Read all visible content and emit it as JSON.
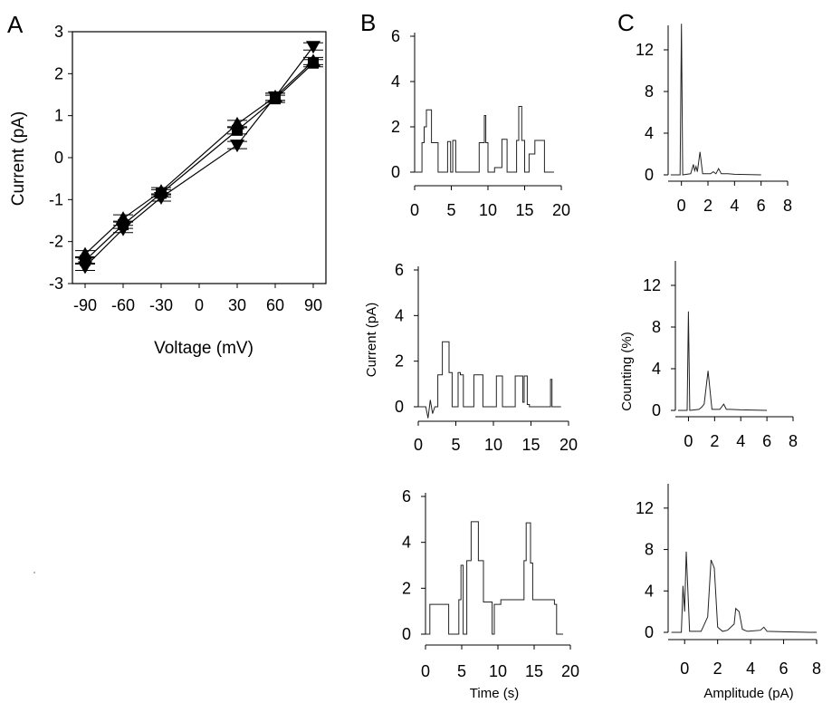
{
  "chart_data": [
    {
      "panel": "A",
      "type": "line",
      "xlabel": "Voltage (mV)",
      "ylabel": "Current (pA)",
      "xticks": [
        -90,
        -60,
        -30,
        0,
        30,
        60,
        90
      ],
      "yticks": [
        -3,
        -2,
        -1,
        0,
        1,
        2,
        3
      ],
      "xlim": [
        -100,
        100
      ],
      "ylim": [
        -3,
        3
      ],
      "grid": false,
      "series": [
        {
          "marker": "triangle-up",
          "x": [
            -90,
            -60,
            -30,
            30,
            60,
            90
          ],
          "y": [
            -2.3,
            -1.45,
            -0.8,
            0.8,
            1.45,
            2.3
          ]
        },
        {
          "marker": "square",
          "x": [
            -90,
            -60,
            -30,
            30,
            60,
            90
          ],
          "y": [
            -2.45,
            -1.6,
            -0.85,
            0.65,
            1.4,
            2.25
          ]
        },
        {
          "marker": "triangle-down",
          "x": [
            -90,
            -60,
            -30,
            30,
            60,
            90
          ],
          "y": [
            -2.6,
            -1.7,
            -0.95,
            0.3,
            1.45,
            2.65
          ]
        }
      ]
    },
    {
      "panel": "B",
      "type": "line",
      "xlabel": "",
      "ylabel": "",
      "xticks": [
        0,
        5,
        10,
        15,
        20
      ],
      "yticks": [
        0,
        2,
        4,
        6
      ],
      "xlim": [
        0,
        20
      ],
      "ylim": [
        0,
        6
      ],
      "series": [
        {
          "x": [
            0,
            1.0,
            1.0,
            1.3,
            1.3,
            1.6,
            1.6,
            2.3,
            2.3,
            3.2,
            3.2,
            4.5,
            4.5,
            4.9,
            4.9,
            5.2,
            5.2,
            5.6,
            5.6,
            8.8,
            8.8,
            9.5,
            9.5,
            9.7,
            9.7,
            10.0,
            10.0,
            10.9,
            10.9,
            11.9,
            11.9,
            12.6,
            12.6,
            13.9,
            13.9,
            14.2,
            14.2,
            14.6,
            14.6,
            15.0,
            15.0,
            15.6,
            15.6,
            16.4,
            16.4,
            17.7,
            17.7,
            18.6,
            18.6,
            19.0
          ],
          "y": [
            0,
            0,
            1.3,
            1.3,
            2.0,
            2.0,
            2.75,
            2.75,
            1.3,
            1.3,
            0,
            0,
            1.35,
            1.35,
            0,
            0,
            1.4,
            1.4,
            0,
            0,
            1.3,
            1.3,
            2.5,
            2.5,
            1.3,
            1.3,
            0,
            0,
            0.2,
            0.2,
            1.45,
            1.45,
            0,
            0,
            1.4,
            1.4,
            2.9,
            2.9,
            1.4,
            1.4,
            0,
            0,
            0.8,
            0.8,
            1.4,
            1.4,
            0,
            0,
            0,
            0
          ]
        }
      ]
    },
    {
      "panel": "C",
      "type": "line",
      "xlabel": "",
      "ylabel": "",
      "xticks": [
        0,
        2,
        4,
        6,
        8
      ],
      "yticks": [
        0,
        4,
        8,
        12
      ],
      "xlim": [
        -1,
        8
      ],
      "ylim": [
        0,
        14
      ],
      "series": [
        {
          "x": [
            -0.8,
            -0.1,
            0,
            0.1,
            0.7,
            0.9,
            1.0,
            1.1,
            1.2,
            1.4,
            1.6,
            2.2,
            2.4,
            2.6,
            2.8,
            3.0,
            3.5,
            4.0,
            6.0
          ],
          "y": [
            0,
            0,
            14.5,
            0,
            0.1,
            1.0,
            0.4,
            0.8,
            0.3,
            2.2,
            0.1,
            0.1,
            0.3,
            0.1,
            0.6,
            0.1,
            0.1,
            0.05,
            0
          ]
        }
      ]
    },
    {
      "panel": "B",
      "type": "line",
      "xlabel": "",
      "ylabel": "Current (pA)",
      "xticks": [
        0,
        5,
        10,
        15,
        20
      ],
      "yticks": [
        0,
        2,
        4,
        6
      ],
      "xlim": [
        0,
        20
      ],
      "ylim": [
        0,
        6
      ],
      "series": [
        {
          "x": [
            0,
            1.0,
            1.3,
            1.6,
            1.9,
            2.2,
            2.6,
            2.6,
            3.2,
            3.2,
            4.1,
            4.1,
            4.5,
            4.5,
            5.3,
            5.3,
            5.6,
            5.6,
            6.0,
            6.0,
            7.4,
            7.4,
            8.6,
            8.6,
            10.4,
            10.4,
            11.2,
            11.2,
            12.9,
            12.9,
            13.9,
            13.9,
            14.1,
            14.1,
            14.5,
            14.5,
            14.8,
            14.8,
            17.6,
            17.6,
            17.8,
            17.8,
            19.0
          ],
          "y": [
            0,
            0,
            -0.5,
            0.3,
            -0.3,
            0,
            0,
            1.4,
            1.4,
            2.85,
            2.85,
            1.5,
            1.5,
            0,
            0,
            1.5,
            1.5,
            1.4,
            1.4,
            0,
            0,
            1.4,
            1.4,
            0,
            0,
            1.35,
            1.35,
            0,
            0,
            1.35,
            1.35,
            0.2,
            0.2,
            1.35,
            1.35,
            0.1,
            0.1,
            0,
            0,
            1.2,
            1.2,
            0,
            0
          ]
        }
      ]
    },
    {
      "panel": "C",
      "type": "line",
      "xlabel": "",
      "ylabel": "Counting (%)",
      "xticks": [
        0,
        2,
        4,
        6,
        8
      ],
      "yticks": [
        0,
        4,
        8,
        12
      ],
      "xlim": [
        -1,
        8
      ],
      "ylim": [
        0,
        14
      ],
      "series": [
        {
          "x": [
            -0.8,
            -0.1,
            0,
            0.1,
            0.8,
            1.0,
            1.2,
            1.5,
            1.8,
            2.4,
            2.7,
            2.9,
            3.2,
            4.0,
            6.0
          ],
          "y": [
            0,
            0,
            9.5,
            0,
            0.1,
            0.3,
            0.6,
            3.8,
            0.1,
            0.1,
            0.6,
            0.1,
            0.1,
            0.05,
            0
          ]
        }
      ]
    },
    {
      "panel": "B",
      "type": "line",
      "xlabel": "Time (s)",
      "ylabel": "",
      "xticks": [
        0,
        5,
        10,
        15,
        20
      ],
      "yticks": [
        0,
        2,
        4,
        6
      ],
      "xlim": [
        0,
        20
      ],
      "ylim": [
        0,
        6
      ],
      "series": [
        {
          "x": [
            0,
            0.6,
            0.6,
            3.2,
            3.2,
            4.6,
            4.6,
            4.9,
            4.9,
            5.2,
            5.2,
            5.7,
            5.7,
            6.3,
            6.3,
            7.3,
            7.3,
            8.0,
            8.0,
            9.2,
            9.2,
            9.5,
            9.5,
            10.4,
            10.4,
            13.6,
            13.6,
            13.9,
            13.9,
            14.5,
            14.5,
            14.8,
            14.8,
            15.4,
            15.4,
            17.8,
            17.8,
            18.1,
            18.1,
            19.0
          ],
          "y": [
            0,
            0,
            1.3,
            1.3,
            0,
            0,
            1.5,
            1.5,
            3.0,
            3.0,
            0,
            0,
            3.2,
            3.2,
            4.9,
            4.9,
            3.2,
            3.2,
            1.4,
            1.4,
            0,
            0,
            1.3,
            1.3,
            1.5,
            1.5,
            3.2,
            3.2,
            4.85,
            4.85,
            3.1,
            3.1,
            1.5,
            1.5,
            1.5,
            1.5,
            1.3,
            1.3,
            0,
            0
          ]
        }
      ]
    },
    {
      "panel": "C",
      "type": "line",
      "xlabel": "Amplitude (pA)",
      "ylabel": "",
      "xticks": [
        0,
        2,
        4,
        6,
        8
      ],
      "yticks": [
        0,
        4,
        8,
        12
      ],
      "xlim": [
        -1,
        8
      ],
      "ylim": [
        0,
        14
      ],
      "series": [
        {
          "x": [
            -0.8,
            -0.2,
            -0.1,
            0.0,
            0.1,
            0.3,
            1.0,
            1.2,
            1.4,
            1.6,
            1.8,
            2.0,
            2.3,
            2.6,
            3.0,
            3.1,
            3.3,
            3.5,
            3.8,
            4.6,
            4.8,
            5.0,
            6.0,
            7.5,
            8.0
          ],
          "y": [
            0,
            0,
            4.5,
            2.0,
            7.8,
            0.1,
            0.1,
            0.8,
            1.5,
            7.0,
            6.2,
            0.5,
            0.1,
            0.2,
            0.8,
            2.3,
            2.0,
            0.3,
            0.1,
            0.2,
            0.5,
            0.1,
            0.05,
            0,
            0
          ]
        }
      ]
    }
  ],
  "labels": {
    "panel_letters": [
      "A",
      "B",
      "C"
    ]
  }
}
